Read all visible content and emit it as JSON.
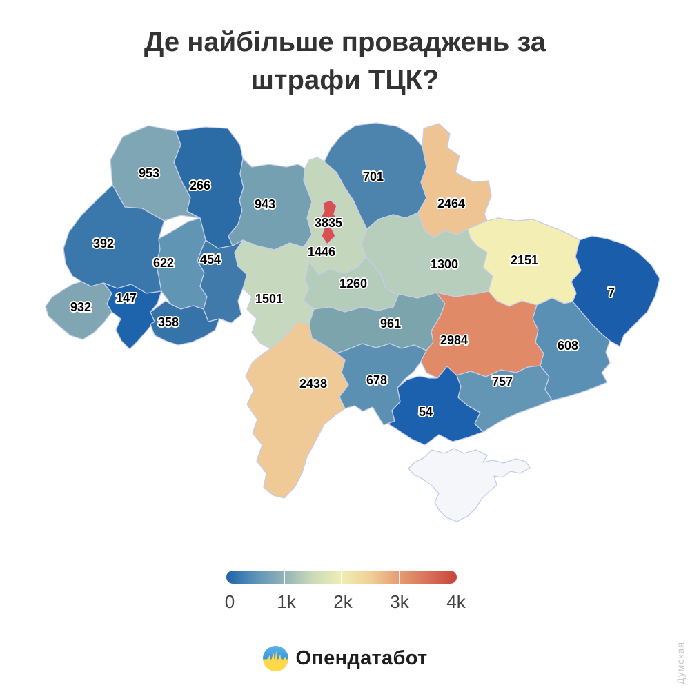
{
  "title": {
    "text": "Де найбільше проваджень за штрафи ТЦК?"
  },
  "watermark": "Думская",
  "logo": {
    "text": "Опендатабот",
    "flag_blue": "#47a3e8",
    "flag_yellow": "#ffd94a"
  },
  "chart_data": {
    "type": "heatmap",
    "subtype": "choropleth-map-ukraine-oblasts",
    "title": "Де найбільше проваджень за штрафи ТЦК?",
    "unit": "кількість проваджень",
    "border_color": "#c6cde9",
    "legend": {
      "min": 0,
      "max": 4000,
      "ticks": [
        "0",
        "1k",
        "2k",
        "3k",
        "4k"
      ],
      "gradient": [
        "#1f63a8",
        "#5b92b8",
        "#93b3b6",
        "#cbdab8",
        "#eeeeb2",
        "#f0d096",
        "#e59c72",
        "#d8715a",
        "#c7433c"
      ]
    },
    "regions": [
      {
        "id": "volyn",
        "name": "Волинська",
        "value": 953,
        "label": "953",
        "color": "#7fa6b4"
      },
      {
        "id": "rivne",
        "name": "Рівненська",
        "value": 266,
        "label": "266",
        "color": "#2c6ca6"
      },
      {
        "id": "lviv",
        "name": "Львівська",
        "value": 392,
        "label": "392",
        "color": "#3a77ab"
      },
      {
        "id": "ternopil",
        "name": "Тернопільська",
        "value": 622,
        "label": "622",
        "color": "#6095b3"
      },
      {
        "id": "zakarpattia",
        "name": "Закарпатська",
        "value": 932,
        "label": "932",
        "color": "#7fa6b2"
      },
      {
        "id": "ivano-frankivsk",
        "name": "Івано-Франківська",
        "value": 147,
        "label": "147",
        "color": "#1e64ad"
      },
      {
        "id": "chernivtsi",
        "name": "Чернівецька",
        "value": 358,
        "label": "358",
        "color": "#3673a9"
      },
      {
        "id": "khmelnytskyi",
        "name": "Хмельницька",
        "value": 454,
        "label": "454",
        "color": "#3f7aab"
      },
      {
        "id": "zhytomyr",
        "name": "Житомирська",
        "value": 943,
        "label": "943",
        "color": "#74a0b2"
      },
      {
        "id": "vinnytsia",
        "name": "Вінницька",
        "value": 1501,
        "label": "1501",
        "color": "#c6d9bf"
      },
      {
        "id": "kyiv-oblast",
        "name": "Київська",
        "value": 1446,
        "label": "1446",
        "color": "#c4d7bd"
      },
      {
        "id": "kyiv-city",
        "name": "м. Київ",
        "value": 3835,
        "label": "3835",
        "color": "#d8514e"
      },
      {
        "id": "chernihiv",
        "name": "Чернігівська",
        "value": 701,
        "label": "701",
        "color": "#4d84ae"
      },
      {
        "id": "cherkasy",
        "name": "Черкаська",
        "value": 1260,
        "label": "1260",
        "color": "#b4cdbb"
      },
      {
        "id": "kirovohrad",
        "name": "Кіровоградська",
        "value": 961,
        "label": "961",
        "color": "#7ca4ad"
      },
      {
        "id": "odesa",
        "name": "Одеська",
        "value": 2438,
        "label": "2438",
        "color": "#efca97"
      },
      {
        "id": "mykolaiv",
        "name": "Миколаївська",
        "value": 678,
        "label": "678",
        "color": "#5c90b2"
      },
      {
        "id": "sumy",
        "name": "Сумська",
        "value": 2464,
        "label": "2464",
        "color": "#eec492"
      },
      {
        "id": "poltava",
        "name": "Полтавська",
        "value": 1300,
        "label": "1300",
        "color": "#b6cebb"
      },
      {
        "id": "kharkiv",
        "name": "Харківська",
        "value": 2151,
        "label": "2151",
        "color": "#f2eeb4"
      },
      {
        "id": "dnipro",
        "name": "Дніпропетровська",
        "value": 2984,
        "label": "2984",
        "color": "#e08a68"
      },
      {
        "id": "kherson",
        "name": "Херсонська",
        "value": 54,
        "label": "54",
        "color": "#1c61ad"
      },
      {
        "id": "zaporizhzhia",
        "name": "Запорізька",
        "value": 757,
        "label": "757",
        "color": "#6396b5"
      },
      {
        "id": "donetsk",
        "name": "Донецька",
        "value": 608,
        "label": "608",
        "color": "#5a90b4"
      },
      {
        "id": "luhansk",
        "name": "Луганська",
        "value": 7,
        "label": "7",
        "color": "#1a5dab"
      },
      {
        "id": "crimea",
        "name": "АР Крим",
        "value": null,
        "label": "",
        "color": "#f4f6f9"
      }
    ]
  }
}
